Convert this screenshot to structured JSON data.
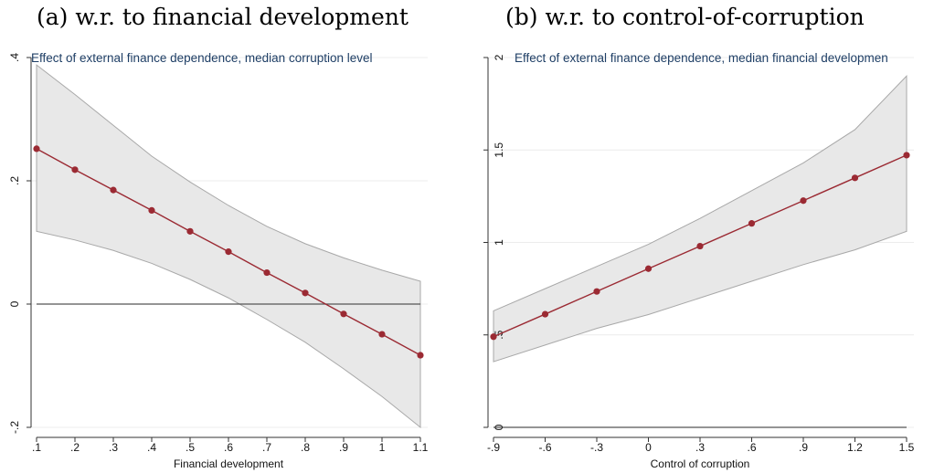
{
  "captions": {
    "a": "(a) w.r. to financial development",
    "b": "(b) w.r. to control-of-corruption"
  },
  "colors": {
    "line": "#9b2a33",
    "band_fill": "#e8e8e8",
    "band_stroke": "#a8a8a8",
    "zero_line": "#555555",
    "grid": "#ececec",
    "title": "#1f3f66"
  },
  "chart_data": [
    {
      "id": "a",
      "type": "line",
      "title": "Effect of external finance dependence, median corruption level",
      "xlabel": "Financial development",
      "ylabel": "",
      "xlim": [
        0.1,
        1.1
      ],
      "ylim": [
        -0.2,
        0.4
      ],
      "x": [
        0.1,
        0.2,
        0.3,
        0.4,
        0.5,
        0.6,
        0.7,
        0.8,
        0.9,
        1.0,
        1.1
      ],
      "series": [
        {
          "values": [
            0.252,
            0.218,
            0.185,
            0.152,
            0.118,
            0.085,
            0.051,
            0.018,
            -0.016,
            -0.049,
            -0.083
          ]
        }
      ],
      "ci_upper": [
        0.388,
        0.34,
        0.29,
        0.24,
        0.198,
        0.16,
        0.126,
        0.098,
        0.075,
        0.055,
        0.037
      ],
      "ci_lower": [
        0.118,
        0.104,
        0.087,
        0.066,
        0.04,
        0.01,
        -0.025,
        -0.062,
        -0.105,
        -0.15,
        -0.2
      ],
      "reference_y": 0,
      "xticks": [
        0.1,
        0.2,
        0.3,
        0.4,
        0.5,
        0.6,
        0.7,
        0.8,
        0.9,
        1.0,
        1.1
      ],
      "xtick_labels": [
        ".1",
        ".2",
        ".3",
        ".4",
        ".5",
        ".6",
        ".7",
        ".8",
        ".9",
        "1",
        "1.1"
      ],
      "yticks": [
        -0.2,
        0,
        0.2,
        0.4
      ],
      "ytick_labels": [
        "-.2",
        "0",
        ".2",
        ".4"
      ],
      "grid": true
    },
    {
      "id": "b",
      "type": "line",
      "title": "Effect of external finance dependence, median financial developmen",
      "xlabel": "Control of corruption",
      "ylabel": "",
      "xlim": [
        -0.9,
        1.5
      ],
      "ylim": [
        0,
        2
      ],
      "x": [
        -0.9,
        -0.6,
        -0.3,
        0,
        0.3,
        0.6,
        0.9,
        1.2,
        1.5
      ],
      "series": [
        {
          "values": [
            0.49,
            0.612,
            0.735,
            0.858,
            0.98,
            1.103,
            1.226,
            1.349,
            1.472
          ]
        }
      ],
      "ci_upper": [
        0.63,
        0.75,
        0.87,
        0.99,
        1.13,
        1.28,
        1.43,
        1.61,
        1.9
      ],
      "ci_lower": [
        0.355,
        0.445,
        0.535,
        0.61,
        0.7,
        0.79,
        0.88,
        0.96,
        1.06
      ],
      "reference_y": 0,
      "xticks": [
        -0.9,
        -0.6,
        -0.3,
        0,
        0.3,
        0.6,
        0.9,
        1.2,
        1.5
      ],
      "xtick_labels": [
        "-.9",
        "-.6",
        "-.3",
        "0",
        ".3",
        ".6",
        ".9",
        "1.2",
        "1.5"
      ],
      "yticks": [
        0,
        0.5,
        1,
        1.5,
        2
      ],
      "ytick_labels": [
        "0",
        ".5",
        "1",
        "1.5",
        "2"
      ],
      "grid": true
    }
  ]
}
